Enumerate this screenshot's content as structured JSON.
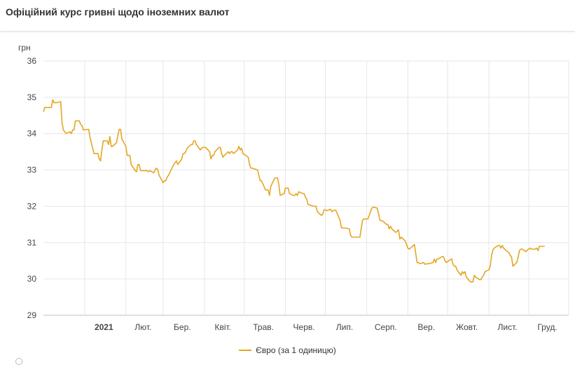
{
  "header": {
    "title": "Офіційний курс гривні щодо іноземних валют"
  },
  "chart_data": {
    "type": "line",
    "unit_label": "грн",
    "ylim": [
      29,
      36
    ],
    "y_ticks": [
      29,
      30,
      31,
      32,
      33,
      34,
      35,
      36
    ],
    "x_ticks": [
      {
        "label": "2021",
        "date": "2021-01-01",
        "bold": true
      },
      {
        "label": "Лют.",
        "date": "2021-02-01"
      },
      {
        "label": "Бер.",
        "date": "2021-03-01"
      },
      {
        "label": "Квіт.",
        "date": "2021-04-01"
      },
      {
        "label": "Трав.",
        "date": "2021-05-01"
      },
      {
        "label": "Черв.",
        "date": "2021-06-01"
      },
      {
        "label": "Лип.",
        "date": "2021-07-01"
      },
      {
        "label": "Серп.",
        "date": "2021-08-01"
      },
      {
        "label": "Вер.",
        "date": "2021-09-01"
      },
      {
        "label": "Жовт.",
        "date": "2021-10-01"
      },
      {
        "label": "Лист.",
        "date": "2021-11-01"
      },
      {
        "label": "Груд.",
        "date": "2021-12-01"
      }
    ],
    "xlim": [
      "2020-12-01",
      "2021-12-31"
    ],
    "grid": true,
    "legend_position": "bottom",
    "series": [
      {
        "name": "Євро (за 1 одиницю)",
        "color": "#e5a623",
        "points": [
          [
            "2020-12-01",
            34.6
          ],
          [
            "2020-12-02",
            34.72
          ],
          [
            "2020-12-03",
            34.72
          ],
          [
            "2020-12-04",
            34.72
          ],
          [
            "2020-12-07",
            34.72
          ],
          [
            "2020-12-08",
            34.93
          ],
          [
            "2020-12-09",
            34.85
          ],
          [
            "2020-12-10",
            34.85
          ],
          [
            "2020-12-11",
            34.85
          ],
          [
            "2020-12-14",
            34.88
          ],
          [
            "2020-12-15",
            34.3
          ],
          [
            "2020-12-16",
            34.1
          ],
          [
            "2020-12-17",
            34.05
          ],
          [
            "2020-12-18",
            34.0
          ],
          [
            "2020-12-21",
            34.05
          ],
          [
            "2020-12-22",
            34.0
          ],
          [
            "2020-12-23",
            34.1
          ],
          [
            "2020-12-24",
            34.1
          ],
          [
            "2020-12-25",
            34.35
          ],
          [
            "2020-12-28",
            34.35
          ],
          [
            "2020-12-29",
            34.25
          ],
          [
            "2020-12-30",
            34.22
          ],
          [
            "2020-12-31",
            34.1
          ],
          [
            "2021-01-04",
            34.12
          ],
          [
            "2021-01-05",
            33.9
          ],
          [
            "2021-01-06",
            33.75
          ],
          [
            "2021-01-08",
            33.45
          ],
          [
            "2021-01-11",
            33.45
          ],
          [
            "2021-01-12",
            33.3
          ],
          [
            "2021-01-13",
            33.25
          ],
          [
            "2021-01-14",
            33.55
          ],
          [
            "2021-01-15",
            33.8
          ],
          [
            "2021-01-18",
            33.8
          ],
          [
            "2021-01-19",
            33.7
          ],
          [
            "2021-01-20",
            33.92
          ],
          [
            "2021-01-21",
            33.65
          ],
          [
            "2021-01-22",
            33.65
          ],
          [
            "2021-01-25",
            33.75
          ],
          [
            "2021-01-26",
            33.95
          ],
          [
            "2021-01-27",
            34.12
          ],
          [
            "2021-01-28",
            34.12
          ],
          [
            "2021-01-29",
            33.85
          ],
          [
            "2021-02-01",
            33.65
          ],
          [
            "2021-02-02",
            33.4
          ],
          [
            "2021-02-03",
            33.4
          ],
          [
            "2021-02-04",
            33.4
          ],
          [
            "2021-02-05",
            33.15
          ],
          [
            "2021-02-08",
            32.98
          ],
          [
            "2021-02-09",
            32.95
          ],
          [
            "2021-02-10",
            33.15
          ],
          [
            "2021-02-11",
            33.15
          ],
          [
            "2021-02-12",
            32.98
          ],
          [
            "2021-02-15",
            32.98
          ],
          [
            "2021-02-16",
            32.98
          ],
          [
            "2021-02-17",
            32.98
          ],
          [
            "2021-02-18",
            32.95
          ],
          [
            "2021-02-19",
            32.98
          ],
          [
            "2021-02-22",
            32.92
          ],
          [
            "2021-02-23",
            33.0
          ],
          [
            "2021-02-24",
            33.05
          ],
          [
            "2021-02-25",
            33.0
          ],
          [
            "2021-02-26",
            32.85
          ],
          [
            "2021-03-01",
            32.65
          ],
          [
            "2021-03-02",
            32.7
          ],
          [
            "2021-03-03",
            32.7
          ],
          [
            "2021-03-04",
            32.8
          ],
          [
            "2021-03-05",
            32.85
          ],
          [
            "2021-03-09",
            33.15
          ],
          [
            "2021-03-10",
            33.2
          ],
          [
            "2021-03-11",
            33.25
          ],
          [
            "2021-03-12",
            33.15
          ],
          [
            "2021-03-15",
            33.3
          ],
          [
            "2021-03-16",
            33.45
          ],
          [
            "2021-03-17",
            33.45
          ],
          [
            "2021-03-18",
            33.5
          ],
          [
            "2021-03-19",
            33.6
          ],
          [
            "2021-03-22",
            33.7
          ],
          [
            "2021-03-23",
            33.7
          ],
          [
            "2021-03-24",
            33.8
          ],
          [
            "2021-03-25",
            33.8
          ],
          [
            "2021-03-26",
            33.7
          ],
          [
            "2021-03-29",
            33.55
          ],
          [
            "2021-03-30",
            33.6
          ],
          [
            "2021-03-31",
            33.62
          ],
          [
            "2021-04-01",
            33.62
          ],
          [
            "2021-04-02",
            33.62
          ],
          [
            "2021-04-05",
            33.5
          ],
          [
            "2021-04-06",
            33.3
          ],
          [
            "2021-04-07",
            33.4
          ],
          [
            "2021-04-08",
            33.4
          ],
          [
            "2021-04-09",
            33.5
          ],
          [
            "2021-04-12",
            33.62
          ],
          [
            "2021-04-13",
            33.62
          ],
          [
            "2021-04-14",
            33.45
          ],
          [
            "2021-04-15",
            33.35
          ],
          [
            "2021-04-16",
            33.4
          ],
          [
            "2021-04-19",
            33.5
          ],
          [
            "2021-04-20",
            33.45
          ],
          [
            "2021-04-21",
            33.5
          ],
          [
            "2021-04-22",
            33.5
          ],
          [
            "2021-04-23",
            33.45
          ],
          [
            "2021-04-26",
            33.55
          ],
          [
            "2021-04-27",
            33.65
          ],
          [
            "2021-04-28",
            33.55
          ],
          [
            "2021-04-29",
            33.6
          ],
          [
            "2021-04-30",
            33.45
          ],
          [
            "2021-05-04",
            33.35
          ],
          [
            "2021-05-05",
            33.15
          ],
          [
            "2021-05-06",
            33.05
          ],
          [
            "2021-05-07",
            33.05
          ],
          [
            "2021-05-11",
            33.0
          ],
          [
            "2021-05-12",
            32.85
          ],
          [
            "2021-05-13",
            32.7
          ],
          [
            "2021-05-14",
            32.7
          ],
          [
            "2021-05-17",
            32.45
          ],
          [
            "2021-05-18",
            32.45
          ],
          [
            "2021-05-19",
            32.45
          ],
          [
            "2021-05-20",
            32.3
          ],
          [
            "2021-05-21",
            32.55
          ],
          [
            "2021-05-24",
            32.78
          ],
          [
            "2021-05-25",
            32.78
          ],
          [
            "2021-05-26",
            32.78
          ],
          [
            "2021-05-27",
            32.6
          ],
          [
            "2021-05-28",
            32.3
          ],
          [
            "2021-05-31",
            32.35
          ],
          [
            "2021-06-01",
            32.5
          ],
          [
            "2021-06-02",
            32.5
          ],
          [
            "2021-06-03",
            32.5
          ],
          [
            "2021-06-04",
            32.35
          ],
          [
            "2021-06-07",
            32.3
          ],
          [
            "2021-06-08",
            32.3
          ],
          [
            "2021-06-09",
            32.35
          ],
          [
            "2021-06-10",
            32.3
          ],
          [
            "2021-06-11",
            32.4
          ],
          [
            "2021-06-14",
            32.35
          ],
          [
            "2021-06-15",
            32.35
          ],
          [
            "2021-06-16",
            32.25
          ],
          [
            "2021-06-17",
            32.2
          ],
          [
            "2021-06-18",
            32.05
          ],
          [
            "2021-06-22",
            32.0
          ],
          [
            "2021-06-23",
            32.0
          ],
          [
            "2021-06-24",
            32.0
          ],
          [
            "2021-06-25",
            31.85
          ],
          [
            "2021-06-28",
            31.75
          ],
          [
            "2021-06-29",
            31.78
          ],
          [
            "2021-06-30",
            31.9
          ],
          [
            "2021-07-01",
            31.9
          ],
          [
            "2021-07-02",
            31.88
          ],
          [
            "2021-07-05",
            31.92
          ],
          [
            "2021-07-06",
            31.85
          ],
          [
            "2021-07-07",
            31.88
          ],
          [
            "2021-07-08",
            31.9
          ],
          [
            "2021-07-09",
            31.88
          ],
          [
            "2021-07-12",
            31.62
          ],
          [
            "2021-07-13",
            31.42
          ],
          [
            "2021-07-14",
            31.4
          ],
          [
            "2021-07-15",
            31.4
          ],
          [
            "2021-07-16",
            31.4
          ],
          [
            "2021-07-19",
            31.38
          ],
          [
            "2021-07-20",
            31.2
          ],
          [
            "2021-07-21",
            31.15
          ],
          [
            "2021-07-22",
            31.15
          ],
          [
            "2021-07-23",
            31.15
          ],
          [
            "2021-07-26",
            31.15
          ],
          [
            "2021-07-27",
            31.15
          ],
          [
            "2021-07-28",
            31.4
          ],
          [
            "2021-07-29",
            31.62
          ],
          [
            "2021-07-30",
            31.65
          ],
          [
            "2021-08-02",
            31.65
          ],
          [
            "2021-08-03",
            31.75
          ],
          [
            "2021-08-04",
            31.85
          ],
          [
            "2021-08-05",
            31.95
          ],
          [
            "2021-08-06",
            31.98
          ],
          [
            "2021-08-09",
            31.95
          ],
          [
            "2021-08-10",
            31.8
          ],
          [
            "2021-08-11",
            31.62
          ],
          [
            "2021-08-12",
            31.6
          ],
          [
            "2021-08-13",
            31.6
          ],
          [
            "2021-08-16",
            31.5
          ],
          [
            "2021-08-17",
            31.5
          ],
          [
            "2021-08-18",
            31.38
          ],
          [
            "2021-08-19",
            31.45
          ],
          [
            "2021-08-20",
            31.38
          ],
          [
            "2021-08-23",
            31.28
          ],
          [
            "2021-08-25",
            31.35
          ],
          [
            "2021-08-26",
            31.1
          ],
          [
            "2021-08-27",
            31.15
          ],
          [
            "2021-08-30",
            31.05
          ],
          [
            "2021-08-31",
            30.95
          ],
          [
            "2021-09-01",
            30.85
          ],
          [
            "2021-09-02",
            30.82
          ],
          [
            "2021-09-03",
            30.85
          ],
          [
            "2021-09-06",
            30.95
          ],
          [
            "2021-09-07",
            30.7
          ],
          [
            "2021-09-08",
            30.45
          ],
          [
            "2021-09-09",
            30.45
          ],
          [
            "2021-09-10",
            30.42
          ],
          [
            "2021-09-13",
            30.45
          ],
          [
            "2021-09-14",
            30.4
          ],
          [
            "2021-09-15",
            30.42
          ],
          [
            "2021-09-16",
            30.42
          ],
          [
            "2021-09-17",
            30.42
          ],
          [
            "2021-09-20",
            30.45
          ],
          [
            "2021-09-21",
            30.55
          ],
          [
            "2021-09-22",
            30.45
          ],
          [
            "2021-09-23",
            30.55
          ],
          [
            "2021-09-24",
            30.55
          ],
          [
            "2021-09-27",
            30.62
          ],
          [
            "2021-09-28",
            30.6
          ],
          [
            "2021-09-29",
            30.5
          ],
          [
            "2021-09-30",
            30.45
          ],
          [
            "2021-10-01",
            30.48
          ],
          [
            "2021-10-04",
            30.55
          ],
          [
            "2021-10-05",
            30.4
          ],
          [
            "2021-10-06",
            30.35
          ],
          [
            "2021-10-07",
            30.35
          ],
          [
            "2021-10-08",
            30.25
          ],
          [
            "2021-10-11",
            30.1
          ],
          [
            "2021-10-12",
            30.2
          ],
          [
            "2021-10-13",
            30.15
          ],
          [
            "2021-10-14",
            30.2
          ],
          [
            "2021-10-15",
            30.05
          ],
          [
            "2021-10-18",
            29.92
          ],
          [
            "2021-10-19",
            29.92
          ],
          [
            "2021-10-20",
            29.92
          ],
          [
            "2021-10-21",
            30.1
          ],
          [
            "2021-10-22",
            30.05
          ],
          [
            "2021-10-25",
            29.98
          ],
          [
            "2021-10-26",
            29.98
          ],
          [
            "2021-10-27",
            30.05
          ],
          [
            "2021-10-28",
            30.1
          ],
          [
            "2021-10-29",
            30.2
          ],
          [
            "2021-11-01",
            30.25
          ],
          [
            "2021-11-02",
            30.35
          ],
          [
            "2021-11-03",
            30.65
          ],
          [
            "2021-11-04",
            30.8
          ],
          [
            "2021-11-05",
            30.85
          ],
          [
            "2021-11-08",
            30.92
          ],
          [
            "2021-11-09",
            30.92
          ],
          [
            "2021-11-10",
            30.85
          ],
          [
            "2021-11-11",
            30.92
          ],
          [
            "2021-11-12",
            30.85
          ],
          [
            "2021-11-15",
            30.75
          ],
          [
            "2021-11-16",
            30.72
          ],
          [
            "2021-11-17",
            30.65
          ],
          [
            "2021-11-18",
            30.6
          ],
          [
            "2021-11-19",
            30.35
          ],
          [
            "2021-11-22",
            30.45
          ],
          [
            "2021-11-23",
            30.6
          ],
          [
            "2021-11-24",
            30.78
          ],
          [
            "2021-11-25",
            30.82
          ],
          [
            "2021-11-26",
            30.82
          ],
          [
            "2021-11-29",
            30.75
          ],
          [
            "2021-11-30",
            30.8
          ],
          [
            "2021-12-01",
            30.82
          ],
          [
            "2021-12-02",
            30.85
          ],
          [
            "2021-12-03",
            30.82
          ],
          [
            "2021-12-06",
            30.82
          ],
          [
            "2021-12-07",
            30.85
          ],
          [
            "2021-12-08",
            30.78
          ],
          [
            "2021-12-09",
            30.9
          ],
          [
            "2021-12-10",
            30.9
          ],
          [
            "2021-12-13",
            30.9
          ]
        ]
      }
    ]
  }
}
